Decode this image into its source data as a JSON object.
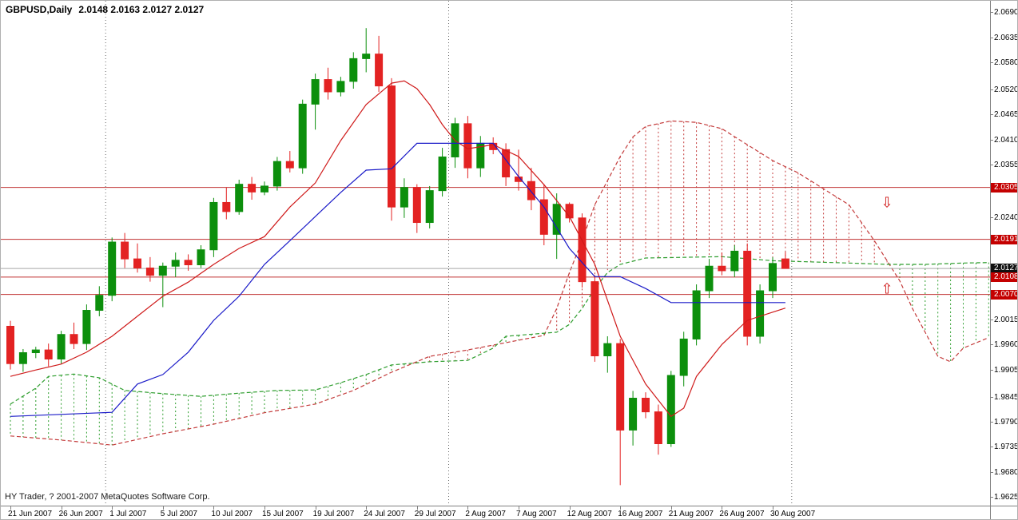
{
  "header": {
    "symbol_period": "GBPUSD,Daily",
    "ohlc_line": "2.0148 2.0163 2.0127 2.0127"
  },
  "footer": {
    "copyright": "HY Trader, ? 2001-2007 MetaQuotes Software Corp."
  },
  "colors": {
    "bull": "#0c8f0c",
    "bear": "#e32222",
    "tenkan": "#cf1a1a",
    "kijun": "#1a1ac8",
    "senkou_a": "#c43c3c",
    "senkou_b": "#2f9e2f",
    "level_line": "#c03333",
    "current_line": "#a6a6a6",
    "badge_red": "#c40000",
    "badge_black": "#111111",
    "separator": "#666666",
    "axis_border": "#808080",
    "arrow": "#d01818",
    "text": "#000000",
    "background": "#ffffff"
  },
  "y_axis": {
    "labels": [
      "2.0690",
      "2.0635",
      "2.0580",
      "2.0520",
      "2.0465",
      "2.0410",
      "2.0355",
      "2.0240",
      "2.0015",
      "1.9960",
      "1.9905",
      "1.9845",
      "1.9790",
      "1.9735",
      "1.9680",
      "1.9625"
    ],
    "badges": [
      {
        "text": "2.0305",
        "price": 2.0305,
        "style": "red"
      },
      {
        "text": "2.0191",
        "price": 2.0191,
        "style": "red"
      },
      {
        "text": "2.0127",
        "price": 2.0127,
        "style": "black"
      },
      {
        "text": "2.0108",
        "price": 2.0108,
        "style": "red"
      },
      {
        "text": "2.0070",
        "price": 2.007,
        "style": "red"
      }
    ]
  },
  "x_axis": {
    "labels": [
      {
        "text": "21 Jun 2007",
        "slot": 0
      },
      {
        "text": "26 Jun 2007",
        "slot": 4
      },
      {
        "text": "1 Jul 2007",
        "slot": 8
      },
      {
        "text": "5 Jul 2007",
        "slot": 12
      },
      {
        "text": "10 Jul 2007",
        "slot": 16
      },
      {
        "text": "15 Jul 2007",
        "slot": 20
      },
      {
        "text": "19 Jul 2007",
        "slot": 24
      },
      {
        "text": "24 Jul 2007",
        "slot": 28
      },
      {
        "text": "29 Jul 2007",
        "slot": 32
      },
      {
        "text": "2 Aug 2007",
        "slot": 36
      },
      {
        "text": "7 Aug 2007",
        "slot": 40
      },
      {
        "text": "12 Aug 2007",
        "slot": 44
      },
      {
        "text": "16 Aug 2007",
        "slot": 48
      },
      {
        "text": "21 Aug 2007",
        "slot": 52
      },
      {
        "text": "26 Aug 2007",
        "slot": 56
      },
      {
        "text": "30 Aug 2007",
        "slot": 60
      }
    ]
  },
  "chart_data": {
    "type": "candlestick",
    "title": "GBPUSD Daily with Ichimoku cloud and horizontal support/resistance levels",
    "symbol": "GBPUSD",
    "timeframe": "Daily",
    "ylim": [
      1.9606,
      2.0715
    ],
    "slots": 78,
    "current_price": 2.0127,
    "h_lines": [
      2.0305,
      2.0191,
      2.0108,
      2.007
    ],
    "separators": [
      8,
      35,
      62
    ],
    "arrows": [
      {
        "dir": "down",
        "slot": 69,
        "price": 2.0272
      },
      {
        "dir": "up",
        "slot": 69,
        "price": 2.0082
      }
    ],
    "candles": [
      [
        "21 Jun 2007",
        2.0,
        2.0012,
        1.9905,
        1.9918
      ],
      [
        "22 Jun 2007",
        1.9918,
        1.995,
        1.99,
        1.9942
      ],
      [
        "24 Jun 2007",
        1.9942,
        1.9955,
        1.993,
        1.9948
      ],
      [
        "25 Jun 2007",
        1.9948,
        1.9962,
        1.9912,
        1.9928
      ],
      [
        "26 Jun 2007",
        1.9928,
        1.999,
        1.9918,
        1.9982
      ],
      [
        "27 Jun 2007",
        1.9982,
        2.0008,
        1.995,
        1.9962
      ],
      [
        "28 Jun 2007",
        1.9962,
        2.0048,
        1.9948,
        2.0035
      ],
      [
        "29 Jun 2007",
        2.0035,
        2.0088,
        2.0022,
        2.0068
      ],
      [
        "1 Jul 2007",
        2.0068,
        2.0195,
        2.0055,
        2.0185
      ],
      [
        "2 Jul 2007",
        2.0185,
        2.0205,
        2.0128,
        2.0148
      ],
      [
        "3 Jul 2007",
        2.0148,
        2.0182,
        2.0118,
        2.0128
      ],
      [
        "4 Jul 2007",
        2.0128,
        2.0152,
        2.0098,
        2.0112
      ],
      [
        "5 Jul 2007",
        2.0112,
        2.014,
        2.0042,
        2.0132
      ],
      [
        "6 Jul 2007",
        2.0132,
        2.0162,
        2.0108,
        2.0145
      ],
      [
        "8 Jul 2007",
        2.0145,
        2.0158,
        2.0122,
        2.0135
      ],
      [
        "9 Jul 2007",
        2.0135,
        2.0178,
        2.0128,
        2.0168
      ],
      [
        "10 Jul 2007",
        2.0168,
        2.0282,
        2.0152,
        2.0272
      ],
      [
        "11 Jul 2007",
        2.0272,
        2.0305,
        2.0235,
        2.0252
      ],
      [
        "12 Jul 2007",
        2.0252,
        2.0322,
        2.0245,
        2.0312
      ],
      [
        "13 Jul 2007",
        2.0312,
        2.0328,
        2.0278,
        2.0295
      ],
      [
        "15 Jul 2007",
        2.0295,
        2.0318,
        2.0288,
        2.0308
      ],
      [
        "16 Jul 2007",
        2.0308,
        2.0372,
        2.0298,
        2.0362
      ],
      [
        "17 Jul 2007",
        2.0362,
        2.0385,
        2.0338,
        2.0348
      ],
      [
        "18 Jul 2007",
        2.0348,
        2.0498,
        2.0335,
        2.0488
      ],
      [
        "19 Jul 2007",
        2.0488,
        2.0555,
        2.0432,
        2.0542
      ],
      [
        "20 Jul 2007",
        2.0542,
        2.0568,
        2.0498,
        2.0515
      ],
      [
        "22 Jul 2007",
        2.0515,
        2.0548,
        2.0505,
        2.0538
      ],
      [
        "23 Jul 2007",
        2.0538,
        2.0602,
        2.0522,
        2.0588
      ],
      [
        "24 Jul 2007",
        2.0588,
        2.0655,
        2.0558,
        2.0598
      ],
      [
        "25 Jul 2007",
        2.0598,
        2.0638,
        2.0515,
        2.0528
      ],
      [
        "26 Jul 2007",
        2.0528,
        2.0545,
        2.0232,
        2.0262
      ],
      [
        "27 Jul 2007",
        2.0262,
        2.0325,
        2.0238,
        2.0305
      ],
      [
        "29 Jul 2007",
        2.0305,
        2.0312,
        2.0205,
        2.0228
      ],
      [
        "30 Jul 2007",
        2.0228,
        2.0308,
        2.0215,
        2.0298
      ],
      [
        "31 Jul 2007",
        2.0298,
        2.0392,
        2.0285,
        2.0372
      ],
      [
        "1 Aug 2007",
        2.0372,
        2.0458,
        2.0348,
        2.0445
      ],
      [
        "2 Aug 2007",
        2.0445,
        2.0462,
        2.0325,
        2.0348
      ],
      [
        "3 Aug 2007",
        2.0348,
        2.0418,
        2.0328,
        2.0402
      ],
      [
        "5 Aug 2007",
        2.0402,
        2.0415,
        2.0378,
        2.0388
      ],
      [
        "6 Aug 2007",
        2.0388,
        2.0402,
        2.0308,
        2.0328
      ],
      [
        "7 Aug 2007",
        2.0328,
        2.0388,
        2.0298,
        2.0318
      ],
      [
        "8 Aug 2007",
        2.0318,
        2.0348,
        2.0255,
        2.0278
      ],
      [
        "9 Aug 2007",
        2.0278,
        2.0312,
        2.0178,
        2.0202
      ],
      [
        "10 Aug 2007",
        2.0202,
        2.0292,
        2.0148,
        2.0268
      ],
      [
        "12 Aug 2007",
        2.0268,
        2.0272,
        2.0228,
        2.0238
      ],
      [
        "13 Aug 2007",
        2.0238,
        2.0248,
        2.0085,
        2.0098
      ],
      [
        "14 Aug 2007",
        2.0098,
        2.0112,
        1.9922,
        1.9935
      ],
      [
        "15 Aug 2007",
        1.9935,
        1.9978,
        1.9898,
        1.9962
      ],
      [
        "16 Aug 2007",
        1.9962,
        1.9972,
        1.9651,
        1.9772
      ],
      [
        "17 Aug 2007",
        1.9772,
        1.9858,
        1.9738,
        1.9842
      ],
      [
        "19 Aug 2007",
        1.9842,
        1.9855,
        1.9798,
        1.9812
      ],
      [
        "20 Aug 2007",
        1.9812,
        1.9828,
        1.9718,
        1.9742
      ],
      [
        "21 Aug 2007",
        1.9742,
        1.9902,
        1.9735,
        1.9892
      ],
      [
        "22 Aug 2007",
        1.9892,
        1.9988,
        1.9868,
        1.9972
      ],
      [
        "23 Aug 2007",
        1.9972,
        2.0092,
        1.9958,
        2.0078
      ],
      [
        "24 Aug 2007",
        2.0078,
        2.0148,
        2.0062,
        2.0132
      ],
      [
        "26 Aug 2007",
        2.0132,
        2.0162,
        2.0112,
        2.0122
      ],
      [
        "27 Aug 2007",
        2.0122,
        2.0178,
        2.0108,
        2.0165
      ],
      [
        "28 Aug 2007",
        2.0165,
        2.0182,
        1.9958,
        1.9978
      ],
      [
        "29 Aug 2007",
        1.9978,
        2.0092,
        1.9962,
        2.0078
      ],
      [
        "30 Aug 2007",
        2.0078,
        2.0152,
        2.0062,
        2.0138
      ],
      [
        "31 Aug 2007",
        2.0148,
        2.0163,
        2.0127,
        2.0127
      ]
    ],
    "overlays": {
      "tenkan": [
        [
          0,
          1.989
        ],
        [
          2,
          1.9904
        ],
        [
          4,
          1.9917
        ],
        [
          6,
          1.9943
        ],
        [
          8,
          1.9978
        ],
        [
          10,
          2.0022
        ],
        [
          12,
          2.0066
        ],
        [
          14,
          2.0097
        ],
        [
          16,
          2.0136
        ],
        [
          18,
          2.0171
        ],
        [
          20,
          2.0197
        ],
        [
          22,
          2.0262
        ],
        [
          24,
          2.0315
        ],
        [
          26,
          2.0408
        ],
        [
          28,
          2.0487
        ],
        [
          30,
          2.0534
        ],
        [
          31,
          2.0539
        ],
        [
          32,
          2.0522
        ],
        [
          33,
          2.0487
        ],
        [
          34,
          2.0443
        ],
        [
          35,
          2.0408
        ],
        [
          36,
          2.039
        ],
        [
          38,
          2.0399
        ],
        [
          40,
          2.0373
        ],
        [
          42,
          2.0311
        ],
        [
          44,
          2.0241
        ],
        [
          46,
          2.0136
        ],
        [
          48,
          1.9978
        ],
        [
          50,
          1.9873
        ],
        [
          52,
          1.9802
        ],
        [
          53,
          1.982
        ],
        [
          54,
          1.989
        ],
        [
          56,
          1.996
        ],
        [
          58,
          2.0013
        ],
        [
          60,
          2.0031
        ],
        [
          61,
          2.004
        ]
      ],
      "kijun": [
        [
          0,
          1.9802
        ],
        [
          8,
          1.9811
        ],
        [
          10,
          1.9873
        ],
        [
          12,
          1.9894
        ],
        [
          14,
          1.9943
        ],
        [
          16,
          2.0013
        ],
        [
          18,
          2.0066
        ],
        [
          20,
          2.0136
        ],
        [
          22,
          2.0188
        ],
        [
          24,
          2.0241
        ],
        [
          26,
          2.0294
        ],
        [
          28,
          2.0343
        ],
        [
          30,
          2.0346
        ],
        [
          31,
          2.0374
        ],
        [
          32,
          2.0402
        ],
        [
          38,
          2.0402
        ],
        [
          40,
          2.0329
        ],
        [
          42,
          2.0262
        ],
        [
          44,
          2.0171
        ],
        [
          46,
          2.0109
        ],
        [
          48,
          2.0109
        ],
        [
          50,
          2.0083
        ],
        [
          52,
          2.0052
        ],
        [
          61,
          2.0052
        ]
      ],
      "senkou_a": [
        [
          0,
          1.9759
        ],
        [
          4,
          1.975
        ],
        [
          8,
          1.9739
        ],
        [
          12,
          1.9764
        ],
        [
          16,
          1.9785
        ],
        [
          20,
          1.981
        ],
        [
          24,
          1.9829
        ],
        [
          27,
          1.9859
        ],
        [
          30,
          1.9899
        ],
        [
          33,
          1.9934
        ],
        [
          36,
          1.9948
        ],
        [
          39,
          1.9964
        ],
        [
          42,
          1.998
        ],
        [
          43,
          2.0039
        ],
        [
          44,
          2.0118
        ],
        [
          45,
          2.0188
        ],
        [
          46,
          2.0267
        ],
        [
          47,
          2.032
        ],
        [
          48,
          2.0373
        ],
        [
          49,
          2.0416
        ],
        [
          50,
          2.0439
        ],
        [
          52,
          2.0451
        ],
        [
          54,
          2.0448
        ],
        [
          56,
          2.0434
        ],
        [
          58,
          2.0399
        ],
        [
          60,
          2.0364
        ],
        [
          62,
          2.0337
        ],
        [
          64,
          2.0302
        ],
        [
          66,
          2.0267
        ],
        [
          68,
          2.0188
        ],
        [
          70,
          2.01
        ],
        [
          71,
          2.0039
        ],
        [
          72,
          1.9987
        ],
        [
          73,
          1.9934
        ],
        [
          74,
          1.9922
        ],
        [
          75,
          1.9952
        ],
        [
          77,
          1.9975
        ]
      ],
      "senkou_b": [
        [
          0,
          1.9829
        ],
        [
          2,
          1.9864
        ],
        [
          3,
          1.989
        ],
        [
          5,
          1.9895
        ],
        [
          7,
          1.9887
        ],
        [
          9,
          1.9859
        ],
        [
          12,
          1.9852
        ],
        [
          15,
          1.9846
        ],
        [
          18,
          1.9853
        ],
        [
          21,
          1.9859
        ],
        [
          24,
          1.986
        ],
        [
          26,
          1.9876
        ],
        [
          28,
          1.9894
        ],
        [
          30,
          1.9915
        ],
        [
          33,
          1.9922
        ],
        [
          36,
          1.9925
        ],
        [
          38,
          1.9952
        ],
        [
          39,
          1.9978
        ],
        [
          43,
          1.9987
        ],
        [
          44,
          2.0004
        ],
        [
          45,
          2.0039
        ],
        [
          46,
          2.0083
        ],
        [
          47,
          2.0118
        ],
        [
          48,
          2.0136
        ],
        [
          50,
          2.015
        ],
        [
          56,
          2.0153
        ],
        [
          60,
          2.0144
        ],
        [
          66,
          2.0139
        ],
        [
          69,
          2.0136
        ],
        [
          72,
          2.0136
        ],
        [
          75,
          2.0139
        ],
        [
          77,
          2.014
        ]
      ]
    }
  }
}
